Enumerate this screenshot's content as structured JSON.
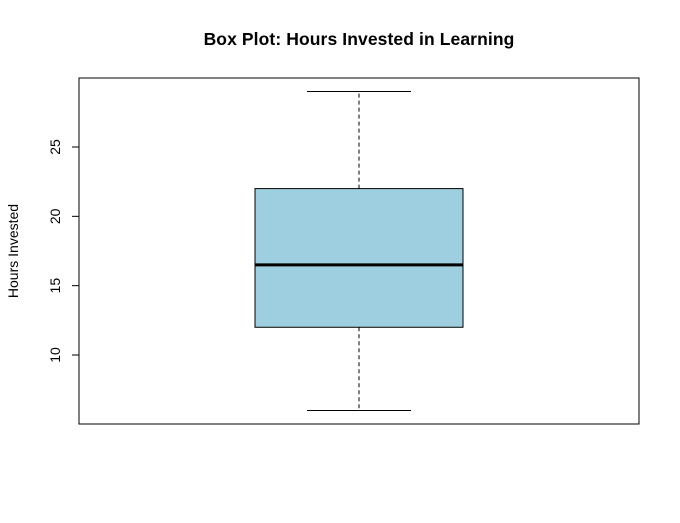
{
  "chart_data": {
    "type": "box",
    "title": "Box Plot: Hours Invested in Learning",
    "xlabel": "",
    "ylabel": "Hours Invested",
    "ylim": [
      5,
      30
    ],
    "yticks": [
      10,
      15,
      20,
      25
    ],
    "box": {
      "min": 6,
      "q1": 12,
      "median": 16.5,
      "q3": 22,
      "max": 29
    },
    "fill_color": "#9ECFE0",
    "grid": false
  }
}
